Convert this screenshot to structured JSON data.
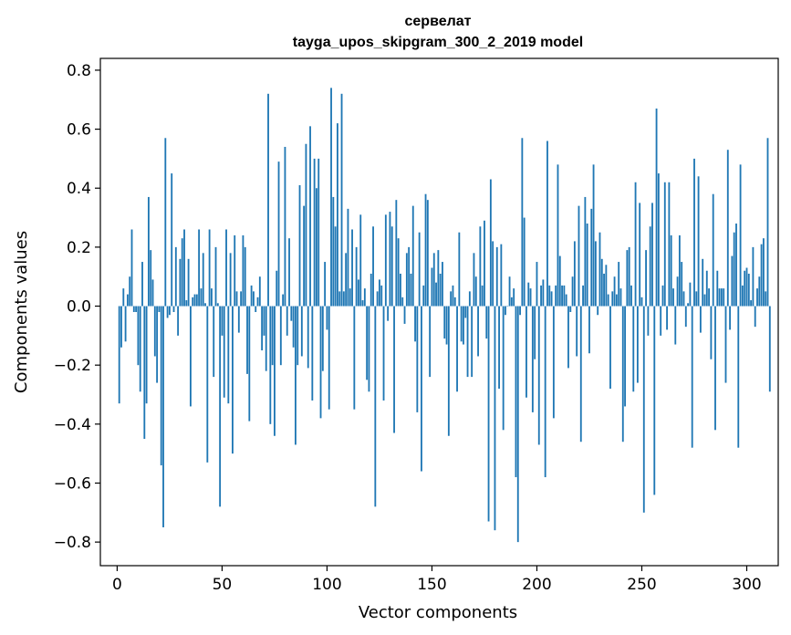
{
  "chart_data": {
    "type": "bar",
    "title": "сервелат",
    "subtitle": "tayga_upos_skipgram_300_2_2019 model",
    "xlabel": "Vector components",
    "ylabel": "Components values",
    "xlim": [
      -8,
      315
    ],
    "ylim": [
      -0.88,
      0.84
    ],
    "xticks": [
      0,
      50,
      100,
      150,
      200,
      250,
      300
    ],
    "xtick_labels": [
      "0",
      "50",
      "100",
      "150",
      "200",
      "250",
      "300"
    ],
    "yticks": [
      -0.8,
      -0.6,
      -0.4,
      -0.2,
      0.0,
      0.2,
      0.4,
      0.6,
      0.8
    ],
    "ytick_labels": [
      "−0.8",
      "−0.6",
      "−0.4",
      "−0.2",
      "0.0",
      "0.2",
      "0.4",
      "0.6",
      "0.8"
    ],
    "grid": false,
    "bar_color": "#1f77b4",
    "x_start": 1,
    "values": [
      -0.33,
      -0.14,
      0.06,
      -0.12,
      0.04,
      0.1,
      0.26,
      -0.02,
      -0.02,
      -0.2,
      -0.29,
      0.15,
      -0.45,
      -0.33,
      0.37,
      0.19,
      0.09,
      -0.17,
      -0.26,
      -0.02,
      -0.54,
      -0.75,
      0.57,
      -0.04,
      -0.03,
      0.45,
      -0.02,
      0.2,
      -0.1,
      0.16,
      0.23,
      0.26,
      0.02,
      0.16,
      -0.34,
      0.03,
      0.04,
      0.04,
      0.26,
      0.06,
      0.18,
      0.01,
      -0.53,
      0.26,
      0.06,
      -0.24,
      0.2,
      0.01,
      -0.68,
      -0.1,
      -0.31,
      0.26,
      -0.33,
      0.18,
      -0.5,
      0.24,
      0.05,
      -0.09,
      0.05,
      0.24,
      0.2,
      -0.23,
      -0.39,
      0.07,
      0.05,
      -0.02,
      0.03,
      0.1,
      -0.15,
      -0.1,
      -0.22,
      0.72,
      -0.4,
      -0.2,
      -0.44,
      0.12,
      0.49,
      -0.2,
      0.04,
      0.54,
      -0.1,
      0.23,
      -0.05,
      -0.14,
      -0.47,
      -0.2,
      0.41,
      -0.17,
      0.34,
      0.55,
      -0.21,
      0.61,
      -0.32,
      0.5,
      0.4,
      0.5,
      -0.38,
      -0.22,
      0.15,
      -0.08,
      -0.35,
      0.74,
      0.37,
      0.27,
      0.62,
      0.05,
      0.72,
      0.05,
      0.18,
      0.33,
      0.06,
      0.26,
      -0.35,
      0.2,
      0.09,
      0.31,
      0.02,
      0.06,
      -0.25,
      -0.29,
      0.11,
      0.27,
      -0.68,
      0.05,
      0.09,
      0.07,
      -0.32,
      0.31,
      -0.05,
      0.32,
      0.27,
      -0.43,
      0.36,
      0.23,
      0.11,
      0.03,
      -0.06,
      0.18,
      0.2,
      0.11,
      0.34,
      -0.12,
      -0.36,
      0.25,
      -0.56,
      0.07,
      0.38,
      0.36,
      -0.24,
      0.13,
      0.18,
      0.08,
      0.19,
      0.11,
      0.15,
      -0.11,
      -0.13,
      -0.44,
      0.05,
      0.07,
      0.03,
      -0.29,
      0.25,
      -0.12,
      -0.13,
      -0.04,
      -0.24,
      0.05,
      -0.24,
      0.18,
      0.1,
      -0.17,
      0.27,
      0.07,
      0.29,
      -0.11,
      -0.73,
      0.43,
      0.22,
      -0.76,
      0.2,
      -0.28,
      0.21,
      -0.42,
      -0.03,
      0.0,
      0.1,
      0.03,
      0.06,
      -0.58,
      -0.8,
      -0.03,
      0.57,
      0.3,
      -0.31,
      0.08,
      0.06,
      -0.36,
      -0.18,
      0.15,
      -0.47,
      0.07,
      0.09,
      -0.58,
      0.56,
      0.07,
      0.05,
      -0.38,
      0.07,
      0.48,
      0.17,
      0.07,
      0.07,
      0.04,
      -0.21,
      -0.02,
      0.1,
      0.22,
      -0.17,
      0.34,
      -0.46,
      0.07,
      0.37,
      0.28,
      -0.16,
      0.33,
      0.48,
      0.22,
      -0.03,
      0.25,
      0.16,
      0.11,
      0.14,
      0.04,
      -0.28,
      0.05,
      0.1,
      0.04,
      0.15,
      0.06,
      -0.46,
      -0.34,
      0.19,
      0.2,
      0.07,
      -0.29,
      0.42,
      -0.26,
      0.35,
      0.03,
      -0.7,
      0.19,
      -0.1,
      0.27,
      0.35,
      -0.64,
      0.67,
      0.45,
      -0.1,
      0.07,
      0.42,
      -0.08,
      0.42,
      0.24,
      0.06,
      -0.13,
      0.1,
      0.24,
      0.15,
      0.05,
      -0.07,
      0.01,
      0.08,
      -0.48,
      0.5,
      0.05,
      0.44,
      -0.09,
      0.16,
      0.04,
      0.12,
      0.06,
      -0.18,
      0.38,
      -0.42,
      0.12,
      0.06,
      0.06,
      0.06,
      -0.26,
      0.53,
      -0.08,
      0.17,
      0.25,
      0.28,
      -0.48,
      0.48,
      0.07,
      0.12,
      0.13,
      0.11,
      0.02,
      0.2,
      -0.07,
      0.06,
      0.1,
      0.21,
      0.23,
      0.05,
      0.57,
      -0.29
    ]
  }
}
